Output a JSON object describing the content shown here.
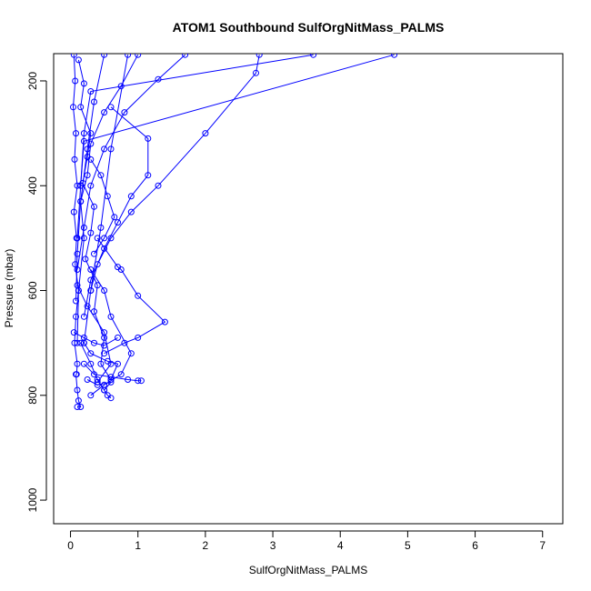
{
  "chart_data": {
    "type": "line",
    "title": "ATOM1 Southbound SulfOrgNitMass_PALMS",
    "xlabel": "SulfOrgNitMass_PALMS",
    "ylabel": "Pressure (mbar)",
    "xlim": [
      -0.25,
      7.3
    ],
    "ylim": [
      1045,
      148
    ],
    "y_reversed": true,
    "x_ticks": [
      0,
      1,
      2,
      3,
      4,
      5,
      6,
      7
    ],
    "y_ticks": [
      200,
      400,
      600,
      800,
      1000
    ],
    "grid": false,
    "legend": "none",
    "color": "#0000ff",
    "marker": "open-circle",
    "series": [
      {
        "x": [
          0.05,
          0.07,
          0.04,
          0.08,
          0.06,
          0.1,
          0.05,
          0.09,
          0.07,
          0.12,
          0.08,
          0.06,
          0.1,
          0.09
        ],
        "y": [
          150,
          200,
          250,
          300,
          350,
          400,
          450,
          500,
          550,
          600,
          650,
          700,
          740,
          760
        ]
      },
      {
        "x": [
          0.12,
          0.2,
          0.15,
          0.3,
          0.25,
          0.18,
          0.35,
          0.3,
          0.22,
          0.4,
          0.35,
          0.5,
          0.45,
          0.6
        ],
        "y": [
          160,
          205,
          250,
          300,
          345,
          395,
          440,
          490,
          540,
          590,
          640,
          690,
          740,
          770
        ]
      },
      {
        "x": [
          1.0,
          0.75,
          0.5,
          0.3,
          0.25,
          0.15,
          0.2,
          0.12,
          0.1
        ],
        "y": [
          150,
          210,
          260,
          320,
          380,
          430,
          500,
          600,
          700
        ]
      },
      {
        "x": [
          2.8,
          2.75,
          2.0,
          1.3,
          0.9,
          0.6,
          0.4,
          0.3
        ],
        "y": [
          150,
          185,
          300,
          400,
          450,
          500,
          550,
          600
        ]
      },
      {
        "x": [
          4.8,
          0.2,
          0.15,
          0.1
        ],
        "y": [
          150,
          315,
          400,
          500
        ]
      },
      {
        "x": [
          3.6,
          0.3,
          0.2,
          0.15
        ],
        "y": [
          150,
          220,
          300,
          400
        ]
      },
      {
        "x": [
          1.7,
          1.3,
          0.8,
          0.5,
          0.3,
          0.2,
          0.1
        ],
        "y": [
          150,
          197,
          260,
          330,
          400,
          480,
          560
        ]
      },
      {
        "x": [
          0.6,
          1.15,
          1.15,
          0.9,
          0.7,
          0.5,
          0.3,
          0.2
        ],
        "y": [
          250,
          310,
          380,
          420,
          470,
          520,
          580,
          650
        ]
      },
      {
        "x": [
          0.4,
          0.7,
          0.75,
          1.0,
          1.4,
          1.0,
          0.8,
          0.5
        ],
        "y": [
          500,
          555,
          560,
          610,
          660,
          690,
          700,
          720
        ]
      },
      {
        "x": [
          0.3,
          0.5,
          0.6,
          0.9,
          0.75,
          0.5,
          0.3
        ],
        "y": [
          560,
          600,
          650,
          720,
          760,
          780,
          800
        ]
      },
      {
        "x": [
          0.15,
          0.3,
          0.4,
          0.5,
          0.55,
          0.6
        ],
        "y": [
          700,
          740,
          770,
          790,
          800,
          805
        ]
      },
      {
        "x": [
          0.08,
          0.1,
          0.12,
          0.15,
          0.1
        ],
        "y": [
          760,
          790,
          810,
          822,
          822
        ]
      },
      {
        "x": [
          0.2,
          0.35,
          0.6,
          0.85,
          1.0,
          1.05
        ],
        "y": [
          740,
          760,
          765,
          770,
          772,
          772
        ]
      },
      {
        "x": [
          0.05,
          0.2,
          0.35,
          0.5,
          0.7
        ],
        "y": [
          680,
          690,
          700,
          705,
          690
        ]
      },
      {
        "x": [
          0.3,
          0.45,
          0.55,
          0.65,
          0.5,
          0.35
        ],
        "y": [
          350,
          380,
          420,
          460,
          500,
          530
        ]
      },
      {
        "x": [
          0.85,
          0.6,
          0.45,
          0.3,
          0.2
        ],
        "y": [
          150,
          330,
          480,
          600,
          700
        ]
      },
      {
        "x": [
          0.5,
          0.35,
          0.25,
          0.15,
          0.1,
          0.08
        ],
        "y": [
          150,
          240,
          330,
          430,
          530,
          620
        ]
      },
      {
        "x": [
          0.1,
          0.25,
          0.5,
          0.6,
          0.4
        ],
        "y": [
          590,
          630,
          680,
          740,
          775
        ]
      },
      {
        "x": [
          0.2,
          0.3,
          0.55,
          0.7,
          0.6
        ],
        "y": [
          700,
          720,
          735,
          740,
          770
        ]
      },
      {
        "x": [
          0.25,
          0.4,
          0.6,
          0.5
        ],
        "y": [
          770,
          780,
          775,
          790
        ]
      }
    ]
  }
}
